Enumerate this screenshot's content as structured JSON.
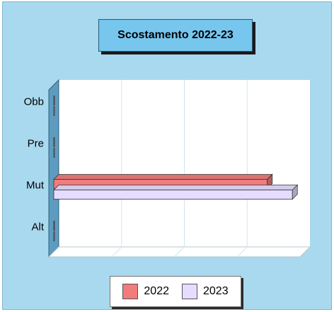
{
  "chart_data": {
    "type": "bar",
    "orientation": "horizontal",
    "title": "Scostamento 2022-23",
    "categories": [
      "Obb",
      "Pre",
      "Mut",
      "Alt"
    ],
    "series": [
      {
        "name": "2022",
        "values": [
          0,
          0,
          3.4,
          0
        ],
        "color": "#f07c7c"
      },
      {
        "name": "2023",
        "values": [
          0,
          0,
          3.8,
          0
        ],
        "color": "#e6dcff"
      }
    ],
    "xlim": [
      0,
      4
    ],
    "grid": true,
    "legend_position": "bottom"
  }
}
